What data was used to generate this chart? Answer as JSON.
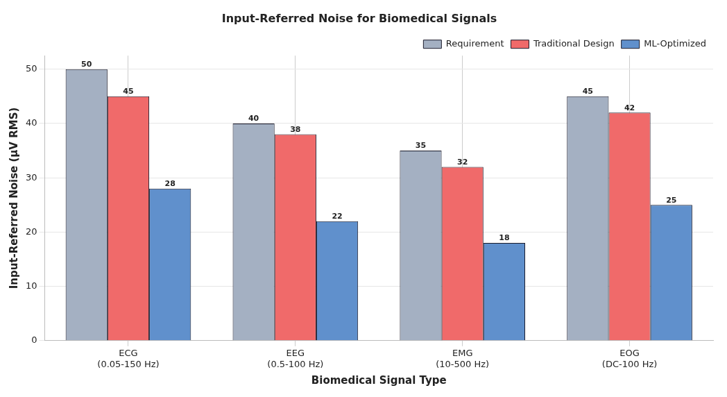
{
  "chart_data": {
    "type": "bar",
    "title": "Input-Referred Noise for Biomedical Signals",
    "xlabel": "Biomedical Signal Type",
    "ylabel": "Input-Referred Noise (μV RMS)",
    "categories": [
      "ECG\n(0.05-150 Hz)",
      "EEG\n(0.5-100 Hz)",
      "EMG\n(10-500 Hz)",
      "EOG\n(DC-100 Hz)"
    ],
    "series": [
      {
        "name": "Requirement",
        "color": "#a4b0c2",
        "values": [
          50,
          40,
          35,
          45
        ]
      },
      {
        "name": "Traditional Design",
        "color": "#f06a6a",
        "values": [
          45,
          38,
          32,
          42
        ]
      },
      {
        "name": "ML-Optimized",
        "color": "#6090cc",
        "values": [
          28,
          22,
          18,
          25
        ]
      }
    ],
    "ylim": [
      0,
      52.5
    ],
    "yticks": [
      0,
      10,
      20,
      30,
      40,
      50
    ],
    "grid": true,
    "legend": "top right",
    "data_labels": true
  }
}
